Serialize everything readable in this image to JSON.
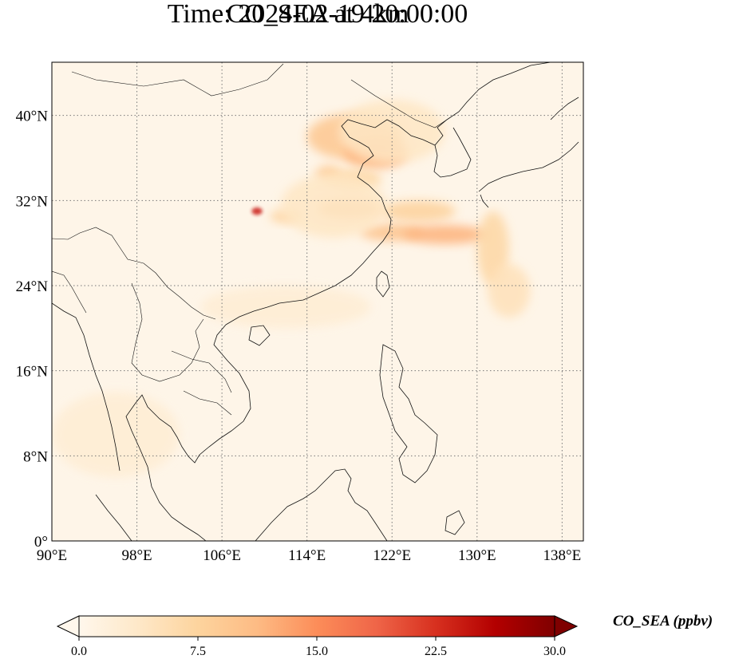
{
  "title_line1": "CO_SEA at 4km",
  "title_line2": "Time: 2024-02-19 20:00:00",
  "map": {
    "lon_range": [
      90,
      140
    ],
    "lat_range": [
      0,
      45
    ],
    "lon_ticks": [
      {
        "value": 90,
        "label": "90°E"
      },
      {
        "value": 98,
        "label": "98°E"
      },
      {
        "value": 106,
        "label": "106°E"
      },
      {
        "value": 114,
        "label": "114°E"
      },
      {
        "value": 122,
        "label": "122°E"
      },
      {
        "value": 130,
        "label": "130°E"
      },
      {
        "value": 138,
        "label": "138°E"
      }
    ],
    "lat_ticks": [
      {
        "value": 0,
        "label": "0°"
      },
      {
        "value": 8,
        "label": "8°N"
      },
      {
        "value": 16,
        "label": "16°N"
      },
      {
        "value": 24,
        "label": "24°N"
      },
      {
        "value": 32,
        "label": "32°N"
      },
      {
        "value": 40,
        "label": "40°N"
      }
    ],
    "gridlines": "dotted",
    "colormap": "OrRd",
    "background_color": "#fef5e8",
    "plumes": [
      {
        "lon": 118.5,
        "lat": 38.0,
        "rlon": 4.5,
        "rlat": 2.2,
        "value": 9.5
      },
      {
        "lon": 120.5,
        "lat": 36.5,
        "rlon": 3.0,
        "rlat": 1.5,
        "value": 12
      },
      {
        "lon": 116.0,
        "lat": 34.5,
        "rlon": 1.2,
        "rlat": 0.8,
        "value": 9
      },
      {
        "lon": 118.5,
        "lat": 34.0,
        "rlon": 2.5,
        "rlat": 1.0,
        "value": 7
      },
      {
        "lon": 118.0,
        "lat": 31.2,
        "rlon": 3.0,
        "rlat": 0.9,
        "value": 10
      },
      {
        "lon": 124.5,
        "lat": 31.0,
        "rlon": 3.5,
        "rlat": 1.0,
        "value": 8
      },
      {
        "lon": 122.0,
        "lat": 29.0,
        "rlon": 3.0,
        "rlat": 0.8,
        "value": 10
      },
      {
        "lon": 127.0,
        "lat": 28.8,
        "rlon": 4.0,
        "rlat": 0.9,
        "value": 12
      },
      {
        "lon": 131.5,
        "lat": 27.5,
        "rlon": 1.5,
        "rlat": 3.5,
        "value": 7
      },
      {
        "lon": 133.0,
        "lat": 23.5,
        "rlon": 2.0,
        "rlat": 2.5,
        "value": 5
      },
      {
        "lon": 109.3,
        "lat": 31.0,
        "rlon": 0.5,
        "rlat": 0.35,
        "value": 24
      },
      {
        "lon": 112.0,
        "lat": 30.5,
        "rlon": 1.5,
        "rlat": 0.6,
        "value": 8
      },
      {
        "lon": 116.5,
        "lat": 31.5,
        "rlon": 5.0,
        "rlat": 3.0,
        "value": 4
      },
      {
        "lon": 122.0,
        "lat": 38.5,
        "rlon": 5.0,
        "rlat": 3.0,
        "value": 4
      },
      {
        "lon": 112.0,
        "lat": 22.0,
        "rlon": 8.0,
        "rlat": 2.0,
        "value": 2.5
      },
      {
        "lon": 96.0,
        "lat": 10.0,
        "rlon": 6.0,
        "rlat": 4.0,
        "value": 2.5
      }
    ]
  },
  "colorbar": {
    "min": 0.0,
    "max": 30.0,
    "extend": "both",
    "ticks": [
      "0.0",
      "7.5",
      "15.0",
      "22.5",
      "30.0"
    ],
    "label": "CO_SEA (ppbv)"
  }
}
